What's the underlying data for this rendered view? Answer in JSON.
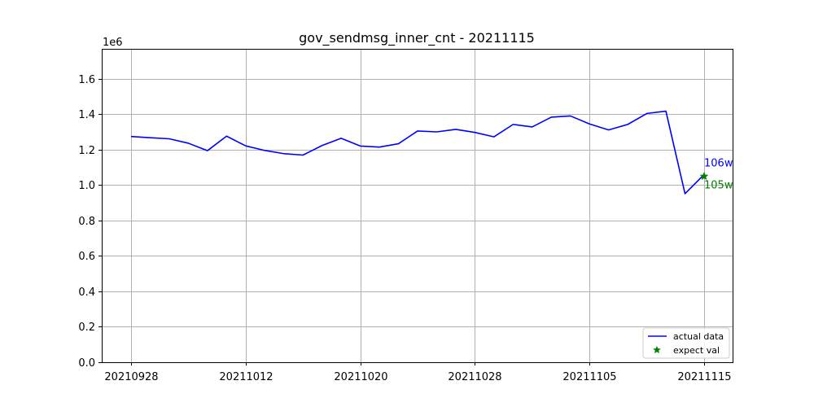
{
  "chart_data": {
    "type": "line",
    "title": "gov_sendmsg_inner_cnt - 20211115",
    "y_multiplier_label": "1e6",
    "xlabel": "",
    "ylabel": "",
    "ylim": [
      0,
      1.77
    ],
    "y_ticks": [
      "0.0",
      "0.2",
      "0.4",
      "0.6",
      "0.8",
      "1.0",
      "1.2",
      "1.4",
      "1.6"
    ],
    "x_ticks": [
      {
        "index": 0,
        "label": "20210928"
      },
      {
        "index": 6,
        "label": "20211012"
      },
      {
        "index": 12,
        "label": "20211020"
      },
      {
        "index": 18,
        "label": "20211028"
      },
      {
        "index": 24,
        "label": "20211105"
      },
      {
        "index": 30,
        "label": "20211115"
      }
    ],
    "grid": true,
    "legend_position": "lower-right",
    "series": [
      {
        "name": "actual data",
        "color": "#0000ff",
        "marker": "line",
        "values": [
          1.275,
          1.268,
          1.262,
          1.237,
          1.195,
          1.277,
          1.222,
          1.196,
          1.178,
          1.17,
          1.224,
          1.265,
          1.221,
          1.215,
          1.234,
          1.306,
          1.301,
          1.315,
          1.298,
          1.273,
          1.343,
          1.329,
          1.384,
          1.391,
          1.346,
          1.312,
          1.343,
          1.405,
          1.418,
          0.952,
          1.06
        ]
      },
      {
        "name": "expect val",
        "color": "#008000",
        "marker": "star",
        "points": [
          {
            "index": 30,
            "value": 1.05
          }
        ]
      }
    ],
    "annotations": [
      {
        "text": "106w",
        "color": "#0000ff",
        "index": 30,
        "value": 1.06,
        "placement": "above"
      },
      {
        "text": "105w",
        "color": "#008000",
        "index": 30,
        "value": 1.05,
        "placement": "below"
      }
    ]
  }
}
